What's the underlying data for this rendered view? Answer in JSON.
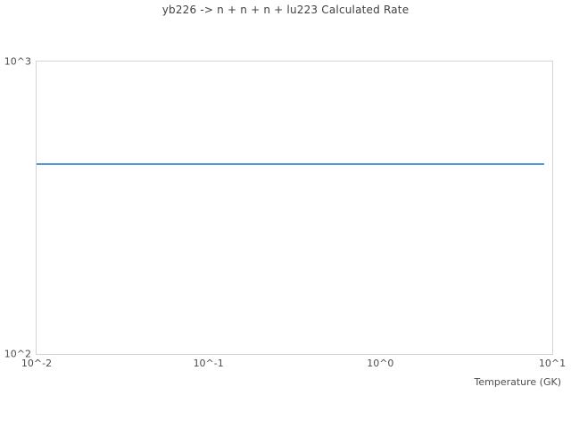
{
  "chart_data": {
    "type": "line",
    "title": "yb226 -> n + n + n + lu223 Calculated Rate",
    "xlabel": "Temperature (GK)",
    "ylabel": "",
    "x_scale": "log",
    "y_scale": "log",
    "xlim": [
      0.01,
      10
    ],
    "ylim": [
      100,
      1000
    ],
    "grid": false,
    "legend": "none",
    "x_ticks": [
      {
        "label": "10^-2",
        "value": 0.01
      },
      {
        "label": "10^-1",
        "value": 0.1
      },
      {
        "label": "10^0",
        "value": 1
      },
      {
        "label": "10^1",
        "value": 10
      }
    ],
    "y_ticks": [
      {
        "label": "10^2",
        "value": 100
      },
      {
        "label": "10^3",
        "value": 1000
      }
    ],
    "series": [
      {
        "name": "calculated rate",
        "color": "#5598d8",
        "x": [
          0.01,
          9.0
        ],
        "y": [
          445,
          445
        ]
      }
    ]
  },
  "colors": {
    "background": "#ffffff",
    "frame": "#d4d4d4",
    "title_text": "#404040",
    "tick_text": "#4d4d4d",
    "line": "#5598d8"
  }
}
